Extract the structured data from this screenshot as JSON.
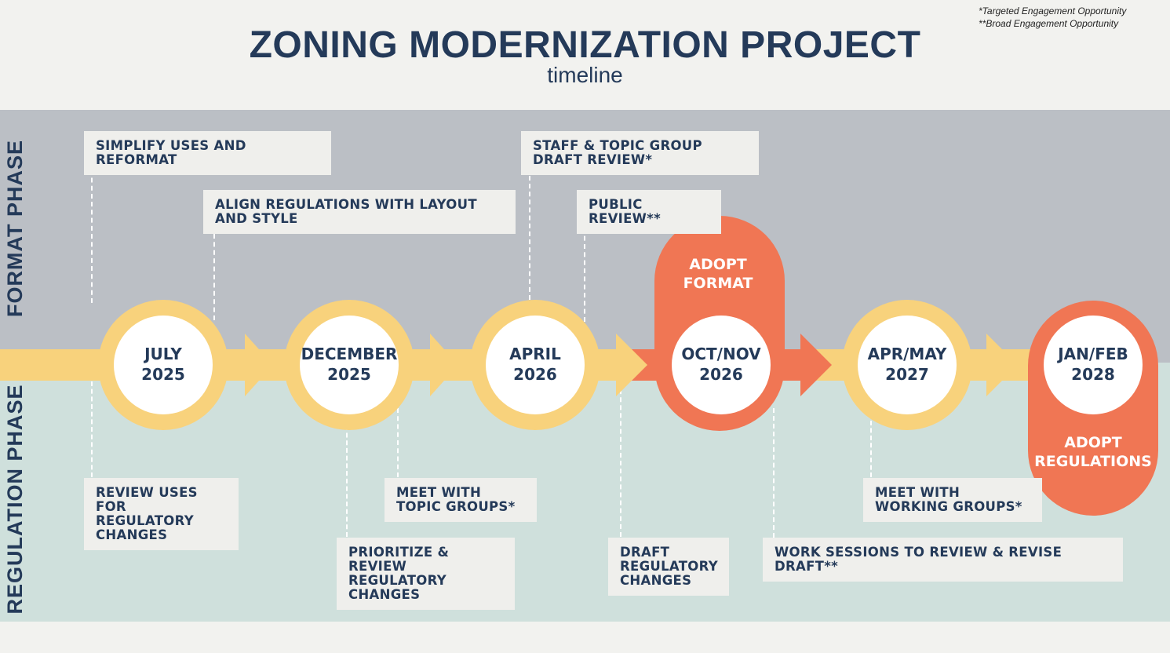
{
  "header": {
    "title": "ZONING MODERNIZATION PROJECT",
    "subtitle": "timeline",
    "notes": [
      "*Targeted Engagement Opportunity",
      "**Broad Engagement Opportunity"
    ]
  },
  "phases": {
    "format": "FORMAT PHASE",
    "regulation": "REGULATION PHASE"
  },
  "milestones": [
    {
      "line1": "JULY",
      "line2": "2025",
      "kind": "regular"
    },
    {
      "line1": "DECEMBER",
      "line2": "2025",
      "kind": "regular"
    },
    {
      "line1": "APRIL",
      "line2": "2026",
      "kind": "regular"
    },
    {
      "line1": "OCT/NOV",
      "line2": "2026",
      "kind": "adoption"
    },
    {
      "line1": "APR/MAY",
      "line2": "2027",
      "kind": "regular"
    },
    {
      "line1": "JAN/FEB",
      "line2": "2028",
      "kind": "adoption"
    }
  ],
  "adoptions": {
    "format": {
      "line1": "ADOPT",
      "line2": "FORMAT"
    },
    "regulations": {
      "line1": "ADOPT",
      "line2": "REGULATIONS"
    }
  },
  "format_tasks": [
    "SIMPLIFY USES AND REFORMAT",
    "ALIGN REGULATIONS WITH LAYOUT AND STYLE",
    "STAFF & TOPIC GROUP DRAFT REVIEW*",
    "PUBLIC REVIEW**"
  ],
  "regulation_tasks": [
    "REVIEW USES FOR REGULATORY CHANGES",
    "MEET WITH TOPIC GROUPS*",
    "PRIORITIZE & REVIEW REGULATORY CHANGES",
    "DRAFT REGULATORY CHANGES",
    "MEET WITH WORKING GROUPS*",
    "WORK SESSIONS TO REVIEW & REVISE DRAFT**"
  ],
  "colors": {
    "navy": "#243a59",
    "yellow": "#f8d27c",
    "orange": "#f07654",
    "format_band": "#bbbfc5",
    "regulation_band": "#cfe0dc",
    "box": "#efefec"
  }
}
